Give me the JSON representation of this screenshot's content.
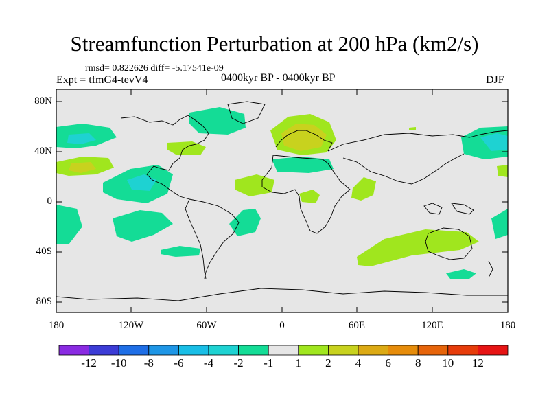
{
  "title": "Streamfunction Perturbation at 200 hPa (km2/s)",
  "stats": "rmsd= 0.822626 diff= -5.17541e-09",
  "experiment": "Expt = tfmG4-tevV4",
  "period": "0400kyr BP - 0400kyr BP",
  "season": "DJF",
  "axes": {
    "lat_labels": [
      "80N",
      "40N",
      "0",
      "40S",
      "80S"
    ],
    "lon_labels": [
      "180",
      "120W",
      "60W",
      "0",
      "60E",
      "120E",
      "180"
    ]
  },
  "colorbar": {
    "labels": [
      "-12",
      "-10",
      "-8",
      "-6",
      "-4",
      "-2",
      "-1",
      "1",
      "2",
      "4",
      "6",
      "8",
      "10",
      "12"
    ],
    "colors": [
      "#8a2be2",
      "#3c3cd6",
      "#1e6ee6",
      "#1e96e6",
      "#19bee6",
      "#1ed2d2",
      "#14dc96",
      "#e6e6e6",
      "#a0e61e",
      "#c8d21e",
      "#dcaa14",
      "#e68c0a",
      "#e6640a",
      "#e63c0a",
      "#e61414"
    ]
  },
  "colors": {
    "background_field": "#e6e6e6",
    "neg_1": "#14dc96",
    "neg_2": "#1ed2d2",
    "pos_1": "#a0e61e",
    "pos_2": "#c8d21e"
  }
}
